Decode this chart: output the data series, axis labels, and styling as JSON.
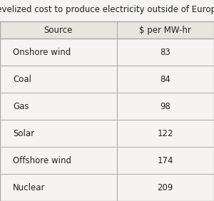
{
  "title": "Levelized cost to produce electricity outside of Europe",
  "col1_header": "Source",
  "col2_header": "$ per MW-hr",
  "rows": [
    [
      "Onshore wind",
      "83"
    ],
    [
      "Coal",
      "84"
    ],
    [
      "Gas",
      "98"
    ],
    [
      "Solar",
      "122"
    ],
    [
      "Offshore wind",
      "174"
    ],
    [
      "Nuclear",
      "209"
    ]
  ],
  "bg_color": "#f5f4f0",
  "header_bg": "#e8e5df",
  "line_color": "#aaaaaa",
  "text_color": "#222222",
  "title_fontsize": 8.5,
  "header_fontsize": 8.5,
  "cell_fontsize": 8.5
}
